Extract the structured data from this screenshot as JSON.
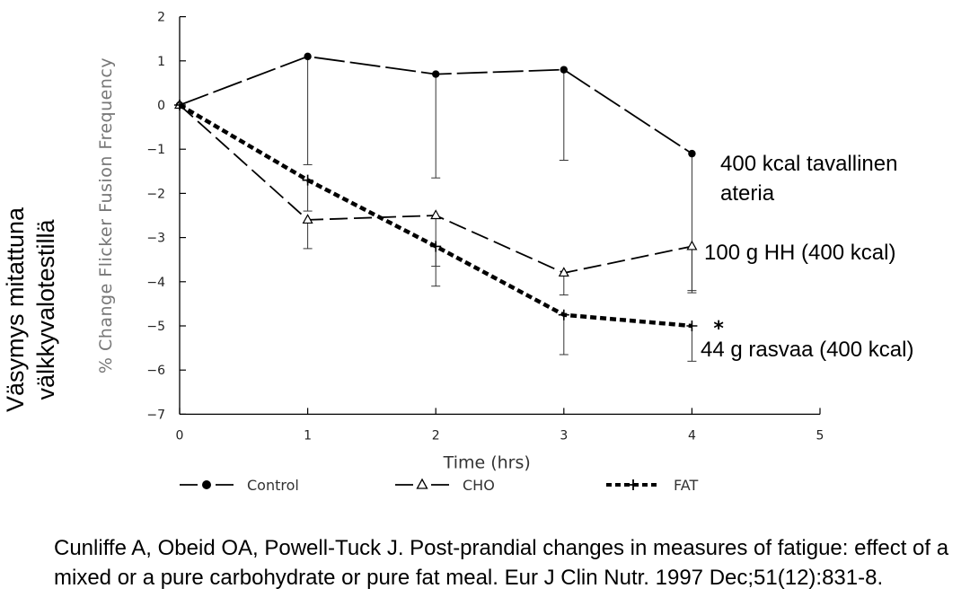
{
  "chart_data": {
    "type": "line",
    "xlabel": "Time (hrs)",
    "ylabel": "% Change Flicker Fusion Frequency",
    "xlim": [
      0,
      5
    ],
    "ylim": [
      -7,
      2
    ],
    "xticks": [
      0,
      1,
      2,
      3,
      4,
      5
    ],
    "yticks": [
      2,
      1,
      0,
      -1,
      -2,
      -3,
      -4,
      -5,
      -6,
      -7
    ],
    "grid": false,
    "legend_position": "bottom",
    "series": [
      {
        "name": "Control",
        "marker": "filled-circle",
        "line": "long-dash-solid",
        "x": [
          0,
          1,
          2,
          3,
          4
        ],
        "y": [
          0,
          1.1,
          0.7,
          0.8,
          -1.1
        ],
        "error_lower": [
          null,
          -1.35,
          -1.65,
          -1.25,
          -4.2
        ]
      },
      {
        "name": "CHO",
        "marker": "open-triangle",
        "line": "long-dash",
        "x": [
          0,
          1,
          2,
          3,
          4
        ],
        "y": [
          0,
          -2.6,
          -2.5,
          -3.8,
          -3.2
        ],
        "error_lower": [
          null,
          -3.25,
          -4.1,
          -4.3,
          -4.25
        ]
      },
      {
        "name": "FAT",
        "marker": "plus",
        "line": "heavy-dotted",
        "x": [
          0,
          1,
          2,
          3,
          4
        ],
        "y": [
          0,
          -1.7,
          -3.2,
          -4.75,
          -5.0
        ],
        "error_lower": [
          null,
          -2.4,
          -3.65,
          -5.65,
          -5.8
        ]
      }
    ],
    "significance_marker": "*",
    "annotations": {
      "control": [
        "400 kcal tavallinen",
        "ateria"
      ],
      "cho": "100 g HH (400 kcal)",
      "fat": "44  g rasvaa  (400 kcal)"
    },
    "outer_ylabel": [
      "Väsymys mitattuna",
      "välkkyvalotestillä"
    ]
  },
  "citation": "Cunliffe A, Obeid OA, Powell-Tuck J. Post-prandial changes in measures of fatigue: effect of a mixed or a pure carbohydrate or pure fat meal. Eur J Clin Nutr. 1997 Dec;51(12):831-8."
}
